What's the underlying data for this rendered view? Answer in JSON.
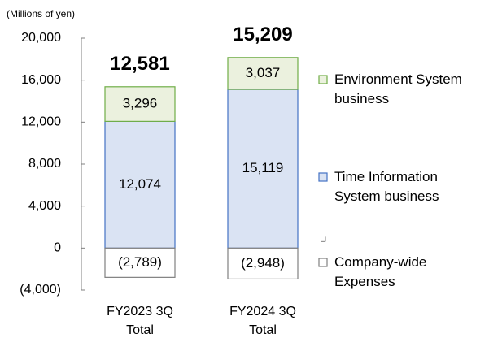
{
  "chart_data": {
    "type": "stacked_bar",
    "unit_label": "(Millions of yen)",
    "categories": [
      "FY2023 3Q Total",
      "FY2024 3Q Total"
    ],
    "series": [
      {
        "name": "Time Information System business",
        "color": "#dae3f3",
        "border": "#4472c4",
        "values": [
          12074,
          15119
        ],
        "value_labels": [
          "12,074",
          "15,119"
        ]
      },
      {
        "name": "Environment System business",
        "color": "#ebf1de",
        "border": "#70ad47",
        "values": [
          3296,
          3037
        ],
        "value_labels": [
          "3,296",
          "3,037"
        ]
      },
      {
        "name": "Company-wide Expenses",
        "color": "#ffffff",
        "border": "#808080",
        "values": [
          -2789,
          -2948
        ],
        "value_labels": [
          "(2,789)",
          "(2,948)"
        ]
      }
    ],
    "totals": [
      12581,
      15209
    ],
    "total_labels": [
      "12,581",
      "15,209"
    ],
    "ylim": [
      -4000,
      20000
    ],
    "yticks": [
      {
        "value": -4000,
        "label": "(4,000)"
      },
      0,
      {
        "value": 4000,
        "label": "4,000"
      },
      {
        "value": 8000,
        "label": "8,000"
      },
      {
        "value": 12000,
        "label": "12,000"
      },
      {
        "value": 16000,
        "label": "16,000"
      },
      {
        "value": 20000,
        "label": "20,000"
      }
    ]
  }
}
